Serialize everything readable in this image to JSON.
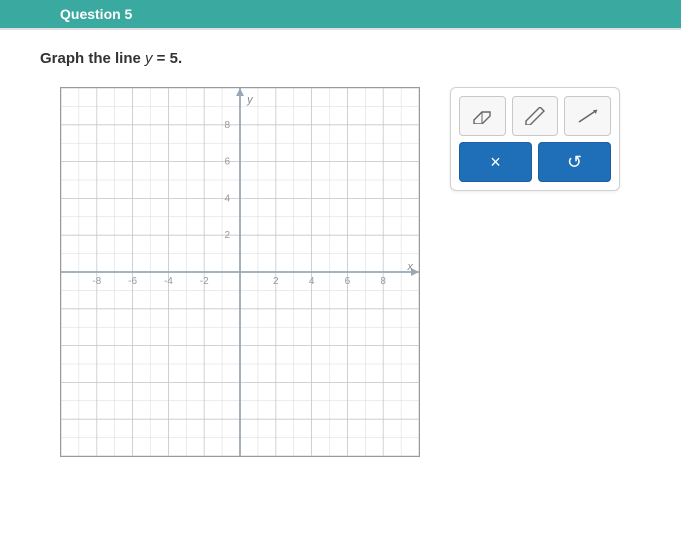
{
  "header": {
    "question_label": "Question 5"
  },
  "prompt": {
    "prefix": "Graph the line ",
    "var": "y",
    "eq": " = ",
    "value": "5",
    "suffix": "."
  },
  "graph": {
    "type": "coordinate-grid",
    "xmin": -10,
    "xmax": 10,
    "ymin": -10,
    "ymax": 10,
    "major_step": 2,
    "minor_step": 1,
    "grid_color": "#d8d8d8",
    "axis_color": "#9aa8b5",
    "background_color": "#ffffff",
    "label_fontsize": 10,
    "label_color": "#999999",
    "y_axis_label": "y",
    "x_axis_label": "x",
    "y_ticks_shown": [
      2,
      4,
      6,
      8
    ],
    "x_ticks_shown": [
      -8,
      -6,
      -4,
      -2,
      2,
      4,
      6,
      8
    ]
  },
  "tools": {
    "eraser_name": "eraser",
    "pencil_name": "pencil",
    "line_name": "line-tool",
    "clear_label": "×",
    "reset_label": "↺"
  },
  "colors": {
    "header_bg": "#3aa99f",
    "action_bg": "#1e6fb8",
    "tool_bg": "#f7f7f7"
  }
}
